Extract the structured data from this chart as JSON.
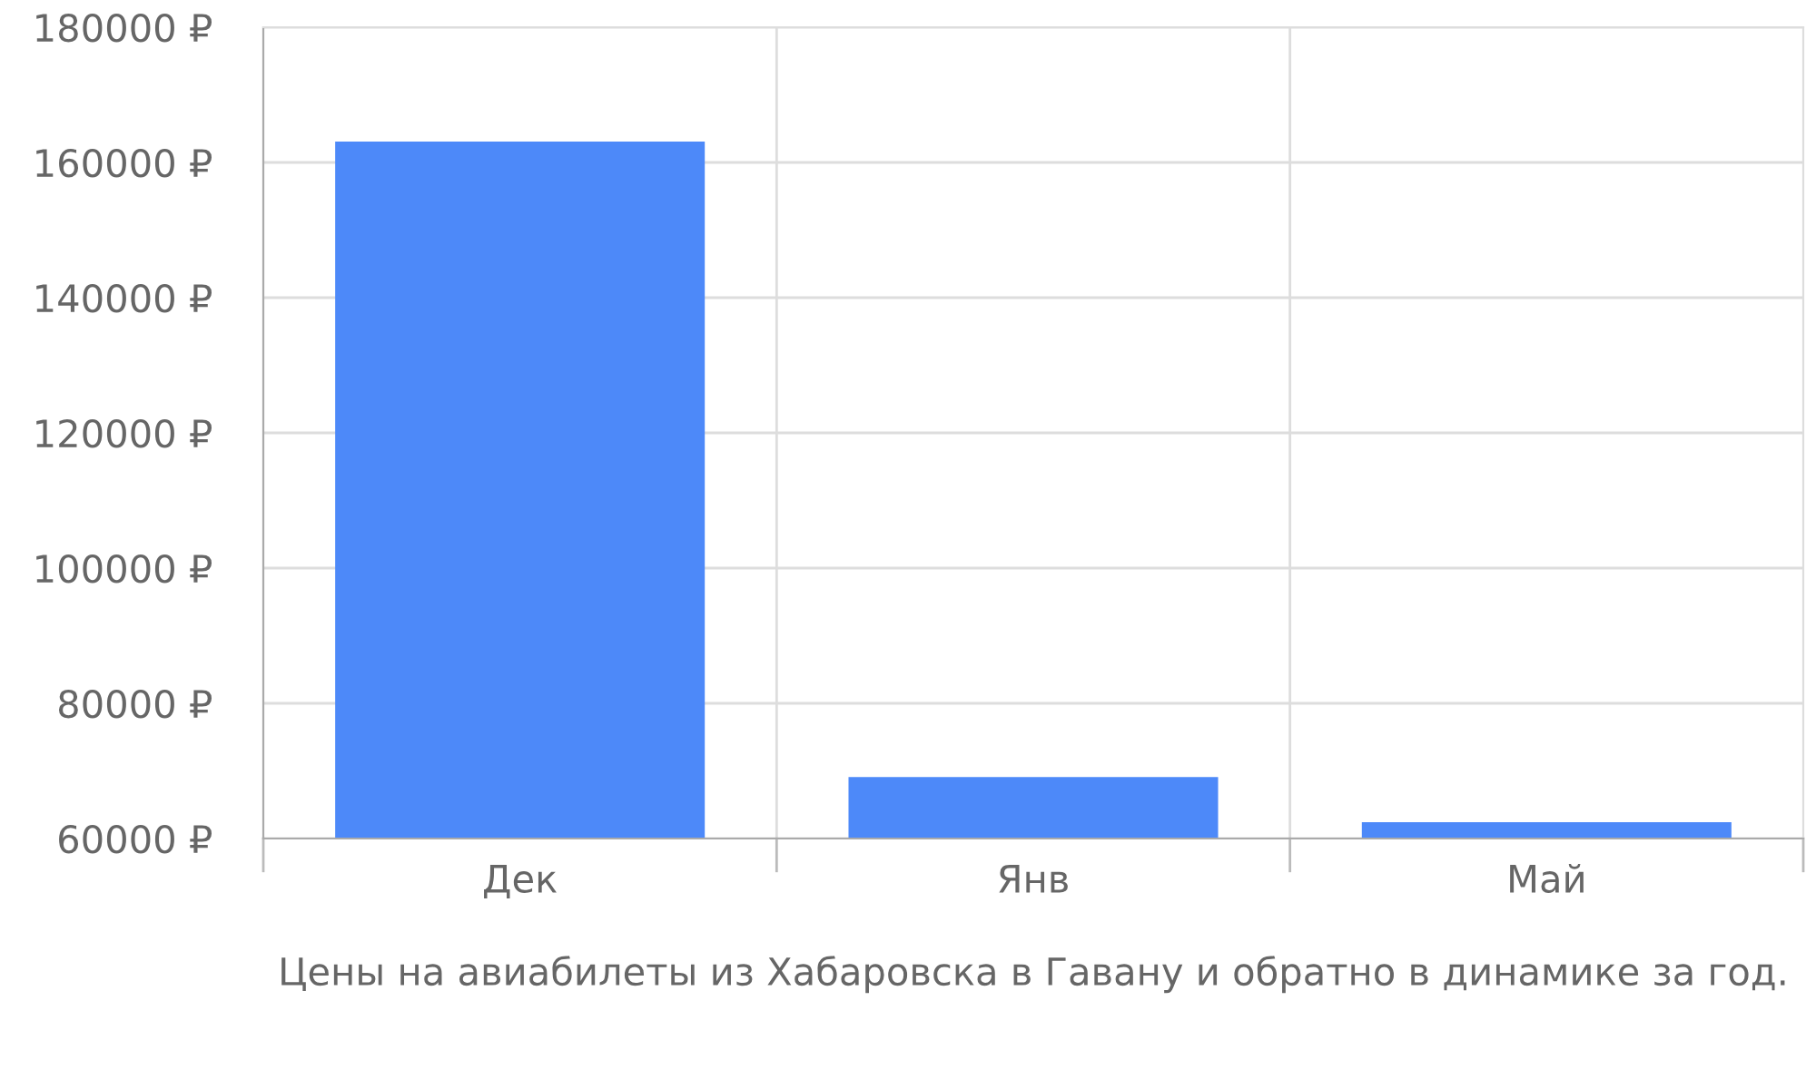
{
  "chart_data": {
    "type": "bar",
    "categories": [
      "Дек",
      "Янв",
      "Май"
    ],
    "values": [
      163100,
      69100,
      62400
    ],
    "color": "#4d89f9",
    "ylim": [
      60000,
      180000
    ],
    "yticks": [
      {
        "value": 60000,
        "label": "60000 ₽"
      },
      {
        "value": 80000,
        "label": "80000 ₽"
      },
      {
        "value": 100000,
        "label": "100000 ₽"
      },
      {
        "value": 120000,
        "label": "120000 ₽"
      },
      {
        "value": 140000,
        "label": "140000 ₽"
      },
      {
        "value": 160000,
        "label": "160000 ₽"
      },
      {
        "value": 180000,
        "label": "180000 ₽"
      }
    ],
    "grid": true,
    "xlabel": "Цены на авиабилеты из Хабаровска в Гавану и обратно в динамике за год."
  }
}
